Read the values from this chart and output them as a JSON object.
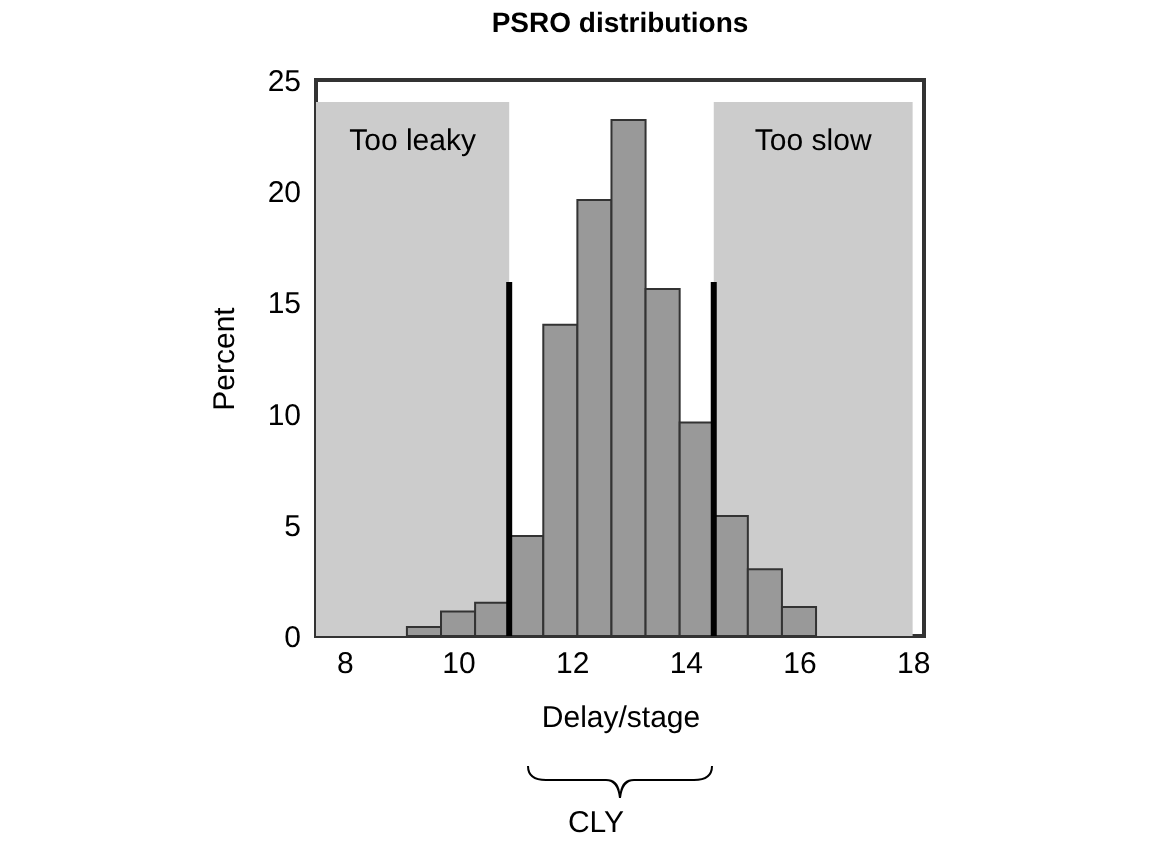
{
  "chart_data": {
    "type": "histogram",
    "title": "PSRO distributions",
    "xlabel": "Delay/stage",
    "ylabel": "Percent",
    "bins": [
      9.1,
      9.7,
      10.3,
      10.9,
      11.5,
      12.1,
      12.7,
      13.3,
      13.9,
      14.5,
      15.1,
      15.7,
      16.3
    ],
    "values": [
      0.4,
      1.1,
      1.5,
      4.5,
      14.0,
      19.6,
      23.2,
      15.6,
      9.6,
      5.4,
      3.0,
      1.3
    ],
    "color": "#999999",
    "xlim": [
      7.5,
      18.2
    ],
    "xticks": [
      8,
      10,
      12,
      14,
      16,
      18
    ],
    "ylim": [
      0,
      25
    ],
    "yticks": [
      0,
      5,
      10,
      15,
      20,
      25
    ],
    "grid": false,
    "bands": [
      {
        "axis": "x",
        "from": 7.5,
        "to": 10.9,
        "label": "Too leaky",
        "color": "#cccccc"
      },
      {
        "axis": "x",
        "from": 14.5,
        "to": 18,
        "label": "Too slow",
        "color": "#cccccc"
      }
    ],
    "ref_lines": [
      {
        "axis": "x",
        "value": 10.9,
        "color": "#000000"
      },
      {
        "axis": "x",
        "value": 14.5,
        "color": "#000000"
      }
    ],
    "annotations": [
      "CLY"
    ]
  }
}
